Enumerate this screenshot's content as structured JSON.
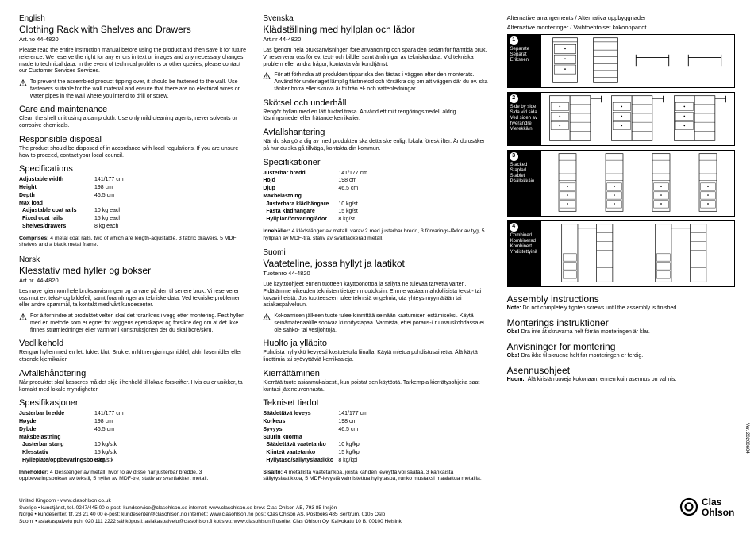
{
  "columns": {
    "en": {
      "lang": "English",
      "title": "Clothing Rack with Shelves and Drawers",
      "artno": "Art.no  44-4820",
      "intro": "Please read the entire instruction manual before using the product and then save it for future reference. We reserve the right for any errors in text or images and any necessary changes made to technical data. In the event of technical problems or other queries, please contact our Customer Services Services.",
      "warn": "To prevent the assembled product tipping over, it should be fastened to the wall. Use fasteners suitable for the wall material and ensure that there are no electrical wires or water pipes in the wall where you intend to drill or screw.",
      "care_h": "Care and maintenance",
      "care": "Clean the shelf unit using a damp cloth. Use only mild cleaning agents, never solvents or corrosive chemicals.",
      "disp_h": "Responsible disposal",
      "disp": "The product should be disposed of in accordance with local regulations. If you are unsure how to proceed, contact your local council.",
      "spec_h": "Specifications",
      "specs": [
        {
          "label": "Adjustable width",
          "val": "141/177 cm"
        },
        {
          "label": "Height",
          "val": "198 cm"
        },
        {
          "label": "Depth",
          "val": "46.5 cm"
        },
        {
          "label": "Max load",
          "val": ""
        },
        {
          "label": "Adjustable coat rails",
          "val": "10 kg each",
          "sub": true
        },
        {
          "label": "Fixed coat rails",
          "val": "15 kg each",
          "sub": true
        },
        {
          "label": "Shelves/drawers",
          "val": "8 kg each",
          "sub": true
        }
      ],
      "comprises": "Comprises: 4 metal coat rails, two of which are length-adjustable, 3 fabric drawers, 5 MDF shelves and a black metal frame."
    },
    "no": {
      "lang": "Norsk",
      "title": "Klesstativ med hyller og bokser",
      "artno": "Art.nr.  44-4820",
      "intro": "Les nøye igjennom hele bruksanvisningen og ta vare på den til senere bruk. Vi reserverer oss mot ev. tekst- og bildefeil, samt forandringer av tekniske data. Ved tekniske problemer eller andre spørsmål, ta kontakt med vårt kundesenter.",
      "warn": "For å forhindre at produktet velter, skal det forankres i vegg etter montering. Fest hyllen med en metode som er egnet for veggens egenskaper og forsikre deg om at det ikke finnes strømledninger eller vannrør i konstruksjonen der du skal bore/skru.",
      "care_h": "Vedlikehold",
      "care": "Rengjør hyllen med en lett fuktet klut. Bruk et mildt rengjøringsmiddel, aldri løsemidler eller etsende kjemikalier.",
      "disp_h": "Avfallshåndtering",
      "disp": "Når produktet skal kasseres må det skje i henhold til lokale forskrifter. Hvis du er usikker, ta kontakt med lokale myndigheter.",
      "spec_h": "Spesifikasjoner",
      "specs": [
        {
          "label": "Justerbar bredde",
          "val": "141/177 cm"
        },
        {
          "label": "Høyde",
          "val": "198 cm"
        },
        {
          "label": "Dybde",
          "val": "46,5 cm"
        },
        {
          "label": "Maksbelastning",
          "val": ""
        },
        {
          "label": "Justerbar stang",
          "val": "10 kg/stk",
          "sub": true
        },
        {
          "label": "Klesstativ",
          "val": "15 kg/stk",
          "sub": true
        },
        {
          "label": "Hylleplate/oppbevaringsbokser",
          "val": "8 kg/stk",
          "sub": true
        }
      ],
      "comprises": "Inneholder: 4 klesstenger av metall, hvor to av disse har justerbar bredde, 3 oppbevaringsbokser av tekstil, 5 hyller av MDF-tre, stativ av svartlakkert metall."
    },
    "sv": {
      "lang": "Svenska",
      "title": "Klädställning med hyllplan och lådor",
      "artno": "Art.nr  44-4820",
      "intro": "Läs igenom hela bruksanvisningen före användning och spara den sedan för framtida bruk. Vi reserverar oss för ev. text- och bildfel samt ändringar av tekniska data. Vid tekniska problem eller andra frågor, kontakta vår kundtjänst.",
      "warn": "För att förhindra att produkten tippar ska den fästas i väggen efter den monterats. Använd för underlaget lämplig fästmetod och försäkra dig om att väggen där du ev. ska tänker borra eller skruva är fri från el- och vattenledningar.",
      "care_h": "Skötsel och underhåll",
      "care": "Rengör hyllan med en lätt fuktad trasa. Använd ett milt rengöringsmedel, aldrig lösningsmedel eller frätande kemikalier.",
      "disp_h": "Avfallshantering",
      "disp": "När du ska göra dig av med produkten ska detta ske enligt lokala föreskrifter. Är du osäker på hur du ska gå tillväga, kontakta din kommun.",
      "spec_h": "Specifikationer",
      "specs": [
        {
          "label": "Justerbar bredd",
          "val": "141/177 cm"
        },
        {
          "label": "Höjd",
          "val": "198 cm"
        },
        {
          "label": "Djup",
          "val": "46,5 cm"
        },
        {
          "label": "Maxbelastning",
          "val": ""
        },
        {
          "label": "Justerbara klädhängare",
          "val": "10 kg/st",
          "sub": true
        },
        {
          "label": "Fasta klädhängare",
          "val": "15 kg/st",
          "sub": true
        },
        {
          "label": "Hyllplan/förvaringlådor",
          "val": "8 kg/st",
          "sub": true
        }
      ],
      "comprises": "Innehåller: 4 klädstänger av metall, varav 2 med justerbar bredd, 3 förvarings-lådor av tyg, 5 hyllplan av MDF-trä, stativ av svartlackerad metall."
    },
    "fi": {
      "lang": "Suomi",
      "title": "Vaateteline, jossa hyllyt ja laatikot",
      "artno": "Tuotenro  44-4820",
      "intro": "Lue käyttöohjeet ennen tuotteen käyttöönottoa ja säilytä ne tulevaa tarvetta varten. Pidätämme oikeuden teknisten tietojen muutoksiin. Emme vastaa mahdollisista teksti- tai kuvavirheistä. Jos tuotteeseen tulee teknisiä ongelmia, ota yhteys myymälään tai asiakaspalveluun.",
      "warn": "Kokoamisen jälkeen tuote tulee kiinnittää seinään kaatumisen estämiseksi. Käytä seinämateriaalille sopivaa kiinnitystapaa. Varmista, ettei poraus-/ ruuvauskohdassa ei ole sähkö- tai vesijohtoja.",
      "care_h": "Huolto ja ylläpito",
      "care": "Puhdista hyllykkö kevyesti kostutetulla liinalla. Käytä mietoa puhdistusainetta. Älä käytä liuottimia tai syövyttäviä kemikaaleja.",
      "disp_h": "Kierrättäminen",
      "disp": "Kierrätä tuote asianmukaisesti, kun poistat sen käytöstä. Tarkempia kierrätysohjeita saat kuntasi jäteneuvonnasta.",
      "spec_h": "Tekniset tiedot",
      "specs": [
        {
          "label": "Säädettävä leveys",
          "val": "141/177 cm"
        },
        {
          "label": "Korkeus",
          "val": "198 cm"
        },
        {
          "label": "Syvyys",
          "val": "46,5 cm"
        },
        {
          "label": "Suurin kuorma",
          "val": ""
        },
        {
          "label": "Säädettävä vaatetanko",
          "val": "10 kg/kpl",
          "sub": true
        },
        {
          "label": "Kiinteä vaatetanko",
          "val": "15 kg/kpl",
          "sub": true
        },
        {
          "label": "Hyllytaso/säilytyslaatikko",
          "val": "8 kg/kpl",
          "sub": true
        }
      ],
      "comprises": "Sisältö: 4 metallista vaatetankoa, joista kahden leveyttä voi säätää, 3 kankaista säilytyslaatikkoa, 5 MDF-levystä valmistettua hyllytasoa, runko mustaksi maalattua metallia."
    }
  },
  "arrangements": {
    "title1": "Alternative arrangements / Alternativa uppbyggnader",
    "title2": "Alternative monteringer / Vaihtoehtoiset kokoonpanot",
    "rows": [
      {
        "num": "1",
        "labels": [
          "Separate",
          "Separat",
          "Erikseen"
        ]
      },
      {
        "num": "2",
        "labels": [
          "Side by side",
          "Sida vid sida",
          "Ved siden av hverandre",
          "Vierekkäin"
        ]
      },
      {
        "num": "3",
        "labels": [
          "Stacked",
          "Staplad",
          "Stablet",
          "Päällekkäin"
        ]
      },
      {
        "num": "4",
        "labels": [
          "Combined",
          "Kombinerad",
          "Kombinert",
          "Yhdistettyinä"
        ]
      }
    ]
  },
  "assembly": {
    "en_h": "Assembly instructions",
    "en_note": "Note: Do not completely tighten screws until the assembly is finished.",
    "sv_h": "Monterings instruktioner",
    "sv_note": "Obs! Dra inte åt skruvarna helt förrän monteringen är klar.",
    "no_h": "Anvisninger for montering",
    "no_note": "Obs! Dra ikke til skruene helt før monteringen er ferdig.",
    "fi_h": "Asennusohjeet",
    "fi_note": "Huom.! Älä kiristä ruuveja kokonaan, ennen kuin asennus on valmis."
  },
  "footer": {
    "uk": "United Kingdom  •  www.clasohlson.co.uk",
    "se": "Sverige  •  kundtjänst, tel. 0247/445 00   e-post: kundservice@clasohlson.se   internet: www.clasohlson.se   brev: Clas Ohlson AB, 793 85 Insjön",
    "no": "Norge  •  kundesenter, tlf. 23 21 40 00   e-post: kundesenter@clasohlson.no   internett: www.clasohlson.no   post: Clas Ohlson AS, Postboks 485 Sentrum, 0105 Oslo",
    "fi": "Suomi  •  asiakaspalvelu puh. 020 111 2222   sähköposti: asiakaspalvelu@clasohlson.fi   kotisivu: www.clasohlson.fi   osoite: Clas Ohlson Oy, Kaivokatu 10 B, 00100 Helsinki"
  },
  "version": "Ver. 20200604",
  "logo": "Clas Ohlson"
}
